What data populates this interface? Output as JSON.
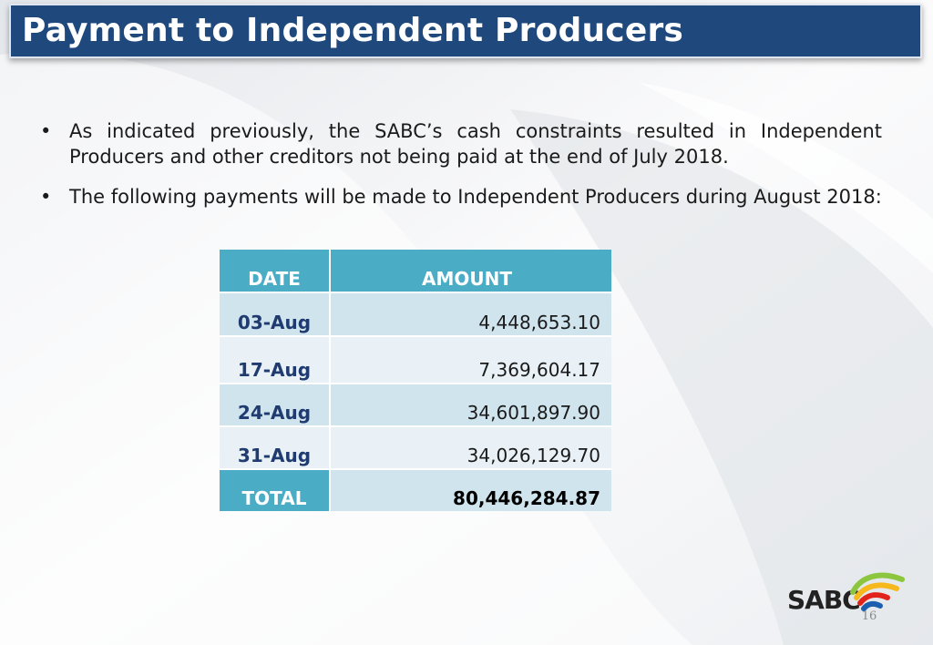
{
  "header": {
    "title": "Payment to Independent Producers"
  },
  "bullets": [
    "As indicated previously, the SABC’s cash constraints resulted in Independent Producers and other creditors not being paid at the end of July 2018.",
    "The following payments will be made to Independent Producers during August 2018:"
  ],
  "bullet_symbol": "•",
  "payments_table": {
    "columns": [
      "DATE",
      "AMOUNT"
    ],
    "rows": [
      {
        "date": "03-Aug",
        "amount": "4,448,653.10"
      },
      {
        "date": "17-Aug",
        "amount": "7,369,604.17"
      },
      {
        "date": "24-Aug",
        "amount": "34,601,897.90"
      },
      {
        "date": "31-Aug",
        "amount": "34,026,129.70"
      }
    ],
    "total": {
      "label": "TOTAL",
      "amount": "80,446,284.87"
    }
  },
  "logo": {
    "text": "SABC",
    "icon": "sabc-logo-icon"
  },
  "footer": {
    "page_number": "16"
  },
  "colors": {
    "title_bar": "#1f497d",
    "table_header": "#4bacc6",
    "row_dark": "#d0e4ee",
    "row_light": "#e9f1f6",
    "date_text": "#1f3b70"
  }
}
